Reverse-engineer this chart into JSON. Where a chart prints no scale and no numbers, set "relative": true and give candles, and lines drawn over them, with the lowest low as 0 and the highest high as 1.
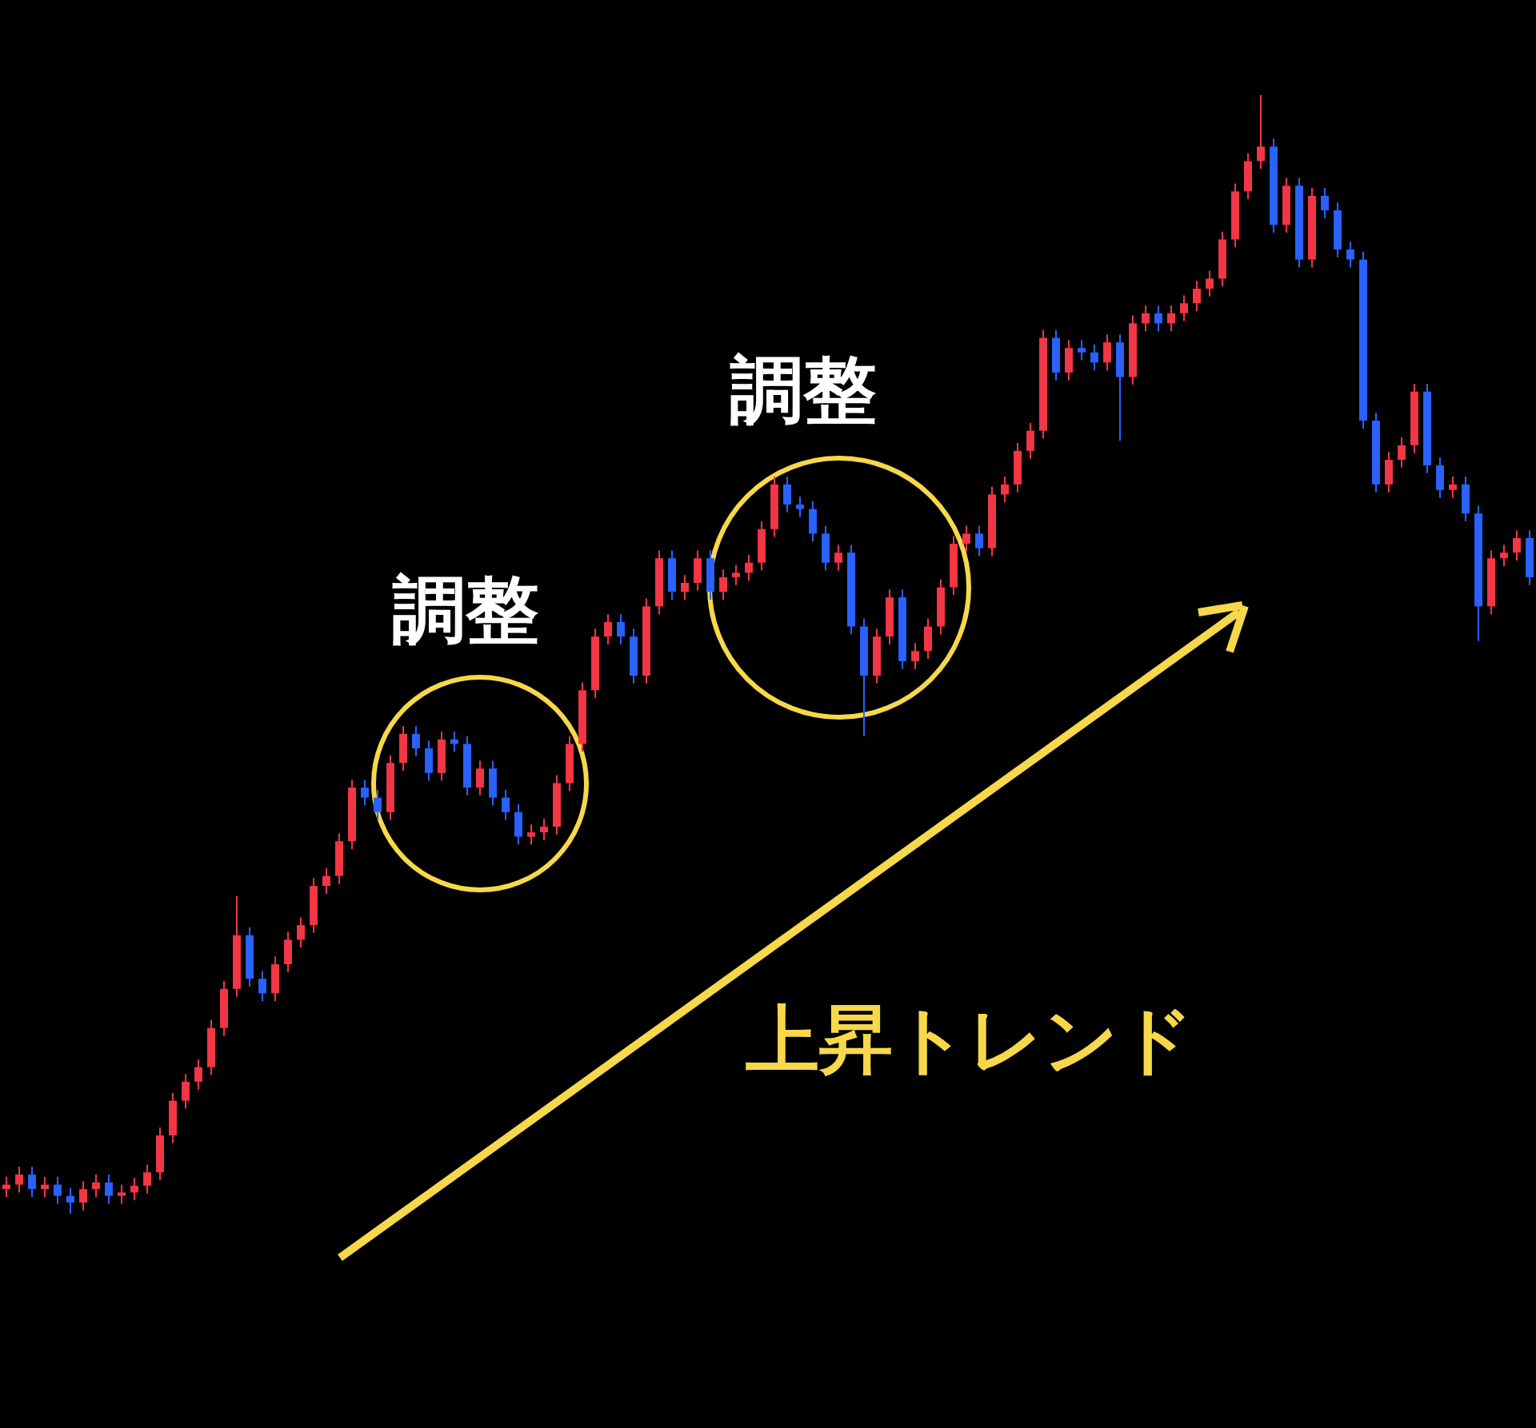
{
  "chart_data": {
    "type": "candlestick",
    "relative": true,
    "categories": [
      null,
      null,
      null,
      null,
      null,
      null,
      null,
      null,
      null,
      null,
      null,
      null,
      null,
      null,
      null,
      null,
      null,
      null,
      null,
      null,
      null,
      null,
      null,
      null,
      null,
      null,
      null,
      null,
      null,
      null,
      null,
      null,
      null,
      null,
      null,
      null,
      null,
      null,
      null,
      null,
      null,
      null,
      null,
      null,
      null,
      null,
      null,
      null,
      null,
      null,
      null,
      null,
      null,
      null,
      null,
      null,
      null,
      null,
      null,
      null,
      null,
      null,
      null,
      null,
      null,
      null,
      null,
      null,
      null,
      null,
      null,
      null,
      null,
      null,
      null,
      null,
      null,
      null,
      null,
      null,
      null,
      null,
      null,
      null,
      null,
      null,
      null,
      null,
      null,
      null,
      null,
      null,
      null,
      null,
      null,
      null,
      null,
      null,
      null,
      null,
      null,
      null,
      null,
      null,
      null,
      null,
      null,
      null,
      null,
      null,
      null,
      null,
      null,
      null,
      null,
      null,
      null,
      null,
      null,
      null
    ],
    "ohlc": [
      [
        0.022,
        0.033,
        0.015,
        0.026
      ],
      [
        0.026,
        0.042,
        0.019,
        0.035
      ],
      [
        0.035,
        0.042,
        0.015,
        0.022
      ],
      [
        0.022,
        0.033,
        0.015,
        0.026
      ],
      [
        0.026,
        0.033,
        0.009,
        0.016
      ],
      [
        0.016,
        0.023,
        0,
        0.01
      ],
      [
        0.01,
        0.029,
        0.003,
        0.022
      ],
      [
        0.022,
        0.035,
        0.015,
        0.028
      ],
      [
        0.028,
        0.035,
        0.009,
        0.016
      ],
      [
        0.016,
        0.026,
        0.009,
        0.019
      ],
      [
        0.019,
        0.032,
        0.012,
        0.025
      ],
      [
        0.025,
        0.044,
        0.018,
        0.037
      ],
      [
        0.037,
        0.077,
        0.03,
        0.07
      ],
      [
        0.07,
        0.108,
        0.063,
        0.101
      ],
      [
        0.101,
        0.125,
        0.094,
        0.118
      ],
      [
        0.118,
        0.138,
        0.111,
        0.131
      ],
      [
        0.131,
        0.173,
        0.124,
        0.166
      ],
      [
        0.166,
        0.208,
        0.159,
        0.201
      ],
      [
        0.201,
        0.284,
        0.194,
        0.249
      ],
      [
        0.249,
        0.256,
        0.203,
        0.21
      ],
      [
        0.21,
        0.217,
        0.19,
        0.197
      ],
      [
        0.197,
        0.23,
        0.19,
        0.223
      ],
      [
        0.223,
        0.252,
        0.216,
        0.245
      ],
      [
        0.245,
        0.265,
        0.238,
        0.258
      ],
      [
        0.258,
        0.3,
        0.251,
        0.293
      ],
      [
        0.293,
        0.309,
        0.286,
        0.302
      ],
      [
        0.302,
        0.34,
        0.295,
        0.333
      ],
      [
        0.333,
        0.388,
        0.326,
        0.381
      ],
      [
        0.381,
        0.388,
        0.365,
        0.372
      ],
      [
        0.372,
        0.379,
        0.352,
        0.359
      ],
      [
        0.359,
        0.41,
        0.352,
        0.403
      ],
      [
        0.403,
        0.436,
        0.396,
        0.429
      ],
      [
        0.429,
        0.436,
        0.409,
        0.416
      ],
      [
        0.416,
        0.423,
        0.387,
        0.394
      ],
      [
        0.394,
        0.431,
        0.387,
        0.424
      ],
      [
        0.424,
        0.431,
        0.413,
        0.42
      ],
      [
        0.42,
        0.427,
        0.374,
        0.381
      ],
      [
        0.381,
        0.405,
        0.374,
        0.398
      ],
      [
        0.398,
        0.405,
        0.365,
        0.372
      ],
      [
        0.372,
        0.379,
        0.352,
        0.359
      ],
      [
        0.359,
        0.366,
        0.33,
        0.337
      ],
      [
        0.337,
        0.348,
        0.33,
        0.341
      ],
      [
        0.341,
        0.353,
        0.334,
        0.346
      ],
      [
        0.346,
        0.392,
        0.339,
        0.385
      ],
      [
        0.385,
        0.427,
        0.378,
        0.42
      ],
      [
        0.42,
        0.475,
        0.413,
        0.468
      ],
      [
        0.468,
        0.523,
        0.461,
        0.516
      ],
      [
        0.516,
        0.536,
        0.509,
        0.529
      ],
      [
        0.529,
        0.536,
        0.509,
        0.516
      ],
      [
        0.516,
        0.523,
        0.474,
        0.481
      ],
      [
        0.481,
        0.55,
        0.474,
        0.543
      ],
      [
        0.543,
        0.593,
        0.536,
        0.586
      ],
      [
        0.586,
        0.593,
        0.549,
        0.556
      ],
      [
        0.556,
        0.571,
        0.549,
        0.564
      ],
      [
        0.564,
        0.593,
        0.557,
        0.586
      ],
      [
        0.586,
        0.593,
        0.549,
        0.556
      ],
      [
        0.556,
        0.576,
        0.549,
        0.569
      ],
      [
        0.569,
        0.58,
        0.562,
        0.573
      ],
      [
        0.573,
        0.589,
        0.566,
        0.582
      ],
      [
        0.582,
        0.619,
        0.575,
        0.612
      ],
      [
        0.612,
        0.659,
        0.605,
        0.652
      ],
      [
        0.652,
        0.659,
        0.627,
        0.634
      ],
      [
        0.634,
        0.641,
        0.623,
        0.63
      ],
      [
        0.63,
        0.637,
        0.601,
        0.608
      ],
      [
        0.608,
        0.615,
        0.575,
        0.582
      ],
      [
        0.582,
        0.598,
        0.575,
        0.591
      ],
      [
        0.591,
        0.598,
        0.518,
        0.525
      ],
      [
        0.525,
        0.532,
        0.427,
        0.481
      ],
      [
        0.481,
        0.523,
        0.474,
        0.516
      ],
      [
        0.516,
        0.558,
        0.509,
        0.551
      ],
      [
        0.551,
        0.558,
        0.487,
        0.494
      ],
      [
        0.494,
        0.51,
        0.487,
        0.503
      ],
      [
        0.503,
        0.532,
        0.496,
        0.525
      ],
      [
        0.525,
        0.567,
        0.518,
        0.56
      ],
      [
        0.56,
        0.606,
        0.553,
        0.599
      ],
      [
        0.599,
        0.615,
        0.592,
        0.608
      ],
      [
        0.608,
        0.615,
        0.588,
        0.595
      ],
      [
        0.595,
        0.65,
        0.588,
        0.643
      ],
      [
        0.643,
        0.659,
        0.636,
        0.652
      ],
      [
        0.652,
        0.689,
        0.645,
        0.682
      ],
      [
        0.682,
        0.707,
        0.675,
        0.7
      ],
      [
        0.7,
        0.79,
        0.693,
        0.783
      ],
      [
        0.783,
        0.79,
        0.745,
        0.752
      ],
      [
        0.752,
        0.781,
        0.745,
        0.774
      ],
      [
        0.774,
        0.781,
        0.763,
        0.77
      ],
      [
        0.77,
        0.777,
        0.754,
        0.761
      ],
      [
        0.761,
        0.786,
        0.754,
        0.779
      ],
      [
        0.779,
        0.786,
        0.691,
        0.748
      ],
      [
        0.748,
        0.803,
        0.741,
        0.796
      ],
      [
        0.796,
        0.812,
        0.789,
        0.805
      ],
      [
        0.805,
        0.812,
        0.789,
        0.796
      ],
      [
        0.796,
        0.812,
        0.789,
        0.805
      ],
      [
        0.805,
        0.821,
        0.798,
        0.814
      ],
      [
        0.814,
        0.834,
        0.807,
        0.827
      ],
      [
        0.827,
        0.843,
        0.82,
        0.836
      ],
      [
        0.836,
        0.878,
        0.829,
        0.871
      ],
      [
        0.871,
        0.921,
        0.864,
        0.914
      ],
      [
        0.914,
        0.948,
        0.907,
        0.941
      ],
      [
        0.941,
        1,
        0.934,
        0.954
      ],
      [
        0.954,
        0.961,
        0.877,
        0.884
      ],
      [
        0.884,
        0.926,
        0.877,
        0.919
      ],
      [
        0.919,
        0.926,
        0.846,
        0.853
      ],
      [
        0.853,
        0.917,
        0.846,
        0.91
      ],
      [
        0.91,
        0.917,
        0.89,
        0.897
      ],
      [
        0.897,
        0.904,
        0.855,
        0.862
      ],
      [
        0.862,
        0.869,
        0.846,
        0.853
      ],
      [
        0.853,
        0.86,
        0.702,
        0.709
      ],
      [
        0.709,
        0.716,
        0.645,
        0.652
      ],
      [
        0.652,
        0.681,
        0.645,
        0.674
      ],
      [
        0.674,
        0.694,
        0.667,
        0.687
      ],
      [
        0.687,
        0.742,
        0.68,
        0.735
      ],
      [
        0.735,
        0.742,
        0.662,
        0.669
      ],
      [
        0.669,
        0.676,
        0.64,
        0.647
      ],
      [
        0.647,
        0.659,
        0.64,
        0.652
      ],
      [
        0.652,
        0.659,
        0.619,
        0.626
      ],
      [
        0.626,
        0.633,
        0.512,
        0.543
      ],
      [
        0.543,
        0.593,
        0.536,
        0.586
      ],
      [
        0.586,
        0.598,
        0.579,
        0.591
      ],
      [
        0.591,
        0.611,
        0.584,
        0.604
      ],
      [
        0.604,
        0.611,
        0.562,
        0.569
      ]
    ],
    "colors": [
      "#f23645",
      "#f23645",
      "#2962ff",
      "#f23645",
      "#2962ff",
      "#2962ff",
      "#f23645",
      "#f23645",
      "#2962ff",
      "#f23645",
      "#f23645",
      "#f23645",
      "#f23645",
      "#f23645",
      "#f23645",
      "#f23645",
      "#f23645",
      "#f23645",
      "#f23645",
      "#2962ff",
      "#2962ff",
      "#f23645",
      "#f23645",
      "#f23645",
      "#f23645",
      "#f23645",
      "#f23645",
      "#f23645",
      "#2962ff",
      "#2962ff",
      "#f23645",
      "#f23645",
      "#2962ff",
      "#2962ff",
      "#f23645",
      "#2962ff",
      "#2962ff",
      "#f23645",
      "#2962ff",
      "#2962ff",
      "#2962ff",
      "#f23645",
      "#f23645",
      "#f23645",
      "#f23645",
      "#f23645",
      "#f23645",
      "#f23645",
      "#2962ff",
      "#2962ff",
      "#f23645",
      "#f23645",
      "#2962ff",
      "#f23645",
      "#f23645",
      "#2962ff",
      "#f23645",
      "#f23645",
      "#f23645",
      "#f23645",
      "#f23645",
      "#2962ff",
      "#2962ff",
      "#2962ff",
      "#2962ff",
      "#f23645",
      "#2962ff",
      "#2962ff",
      "#f23645",
      "#f23645",
      "#2962ff",
      "#f23645",
      "#f23645",
      "#f23645",
      "#f23645",
      "#f23645",
      "#2962ff",
      "#f23645",
      "#f23645",
      "#f23645",
      "#f23645",
      "#f23645",
      "#2962ff",
      "#f23645",
      "#2962ff",
      "#2962ff",
      "#f23645",
      "#2962ff",
      "#f23645",
      "#f23645",
      "#2962ff",
      "#f23645",
      "#f23645",
      "#f23645",
      "#f23645",
      "#f23645",
      "#f23645",
      "#f23645",
      "#f23645",
      "#2962ff",
      "#f23645",
      "#2962ff",
      "#f23645",
      "#2962ff",
      "#2962ff",
      "#2962ff",
      "#2962ff",
      "#2962ff",
      "#f23645",
      "#f23645",
      "#f23645",
      "#2962ff",
      "#2962ff",
      "#f23645",
      "#2962ff",
      "#2962ff",
      "#f23645",
      "#f23645",
      "#f23645",
      "#2962ff"
    ],
    "annotations": [
      "調整",
      "調整",
      "上昇トレンド"
    ]
  }
}
